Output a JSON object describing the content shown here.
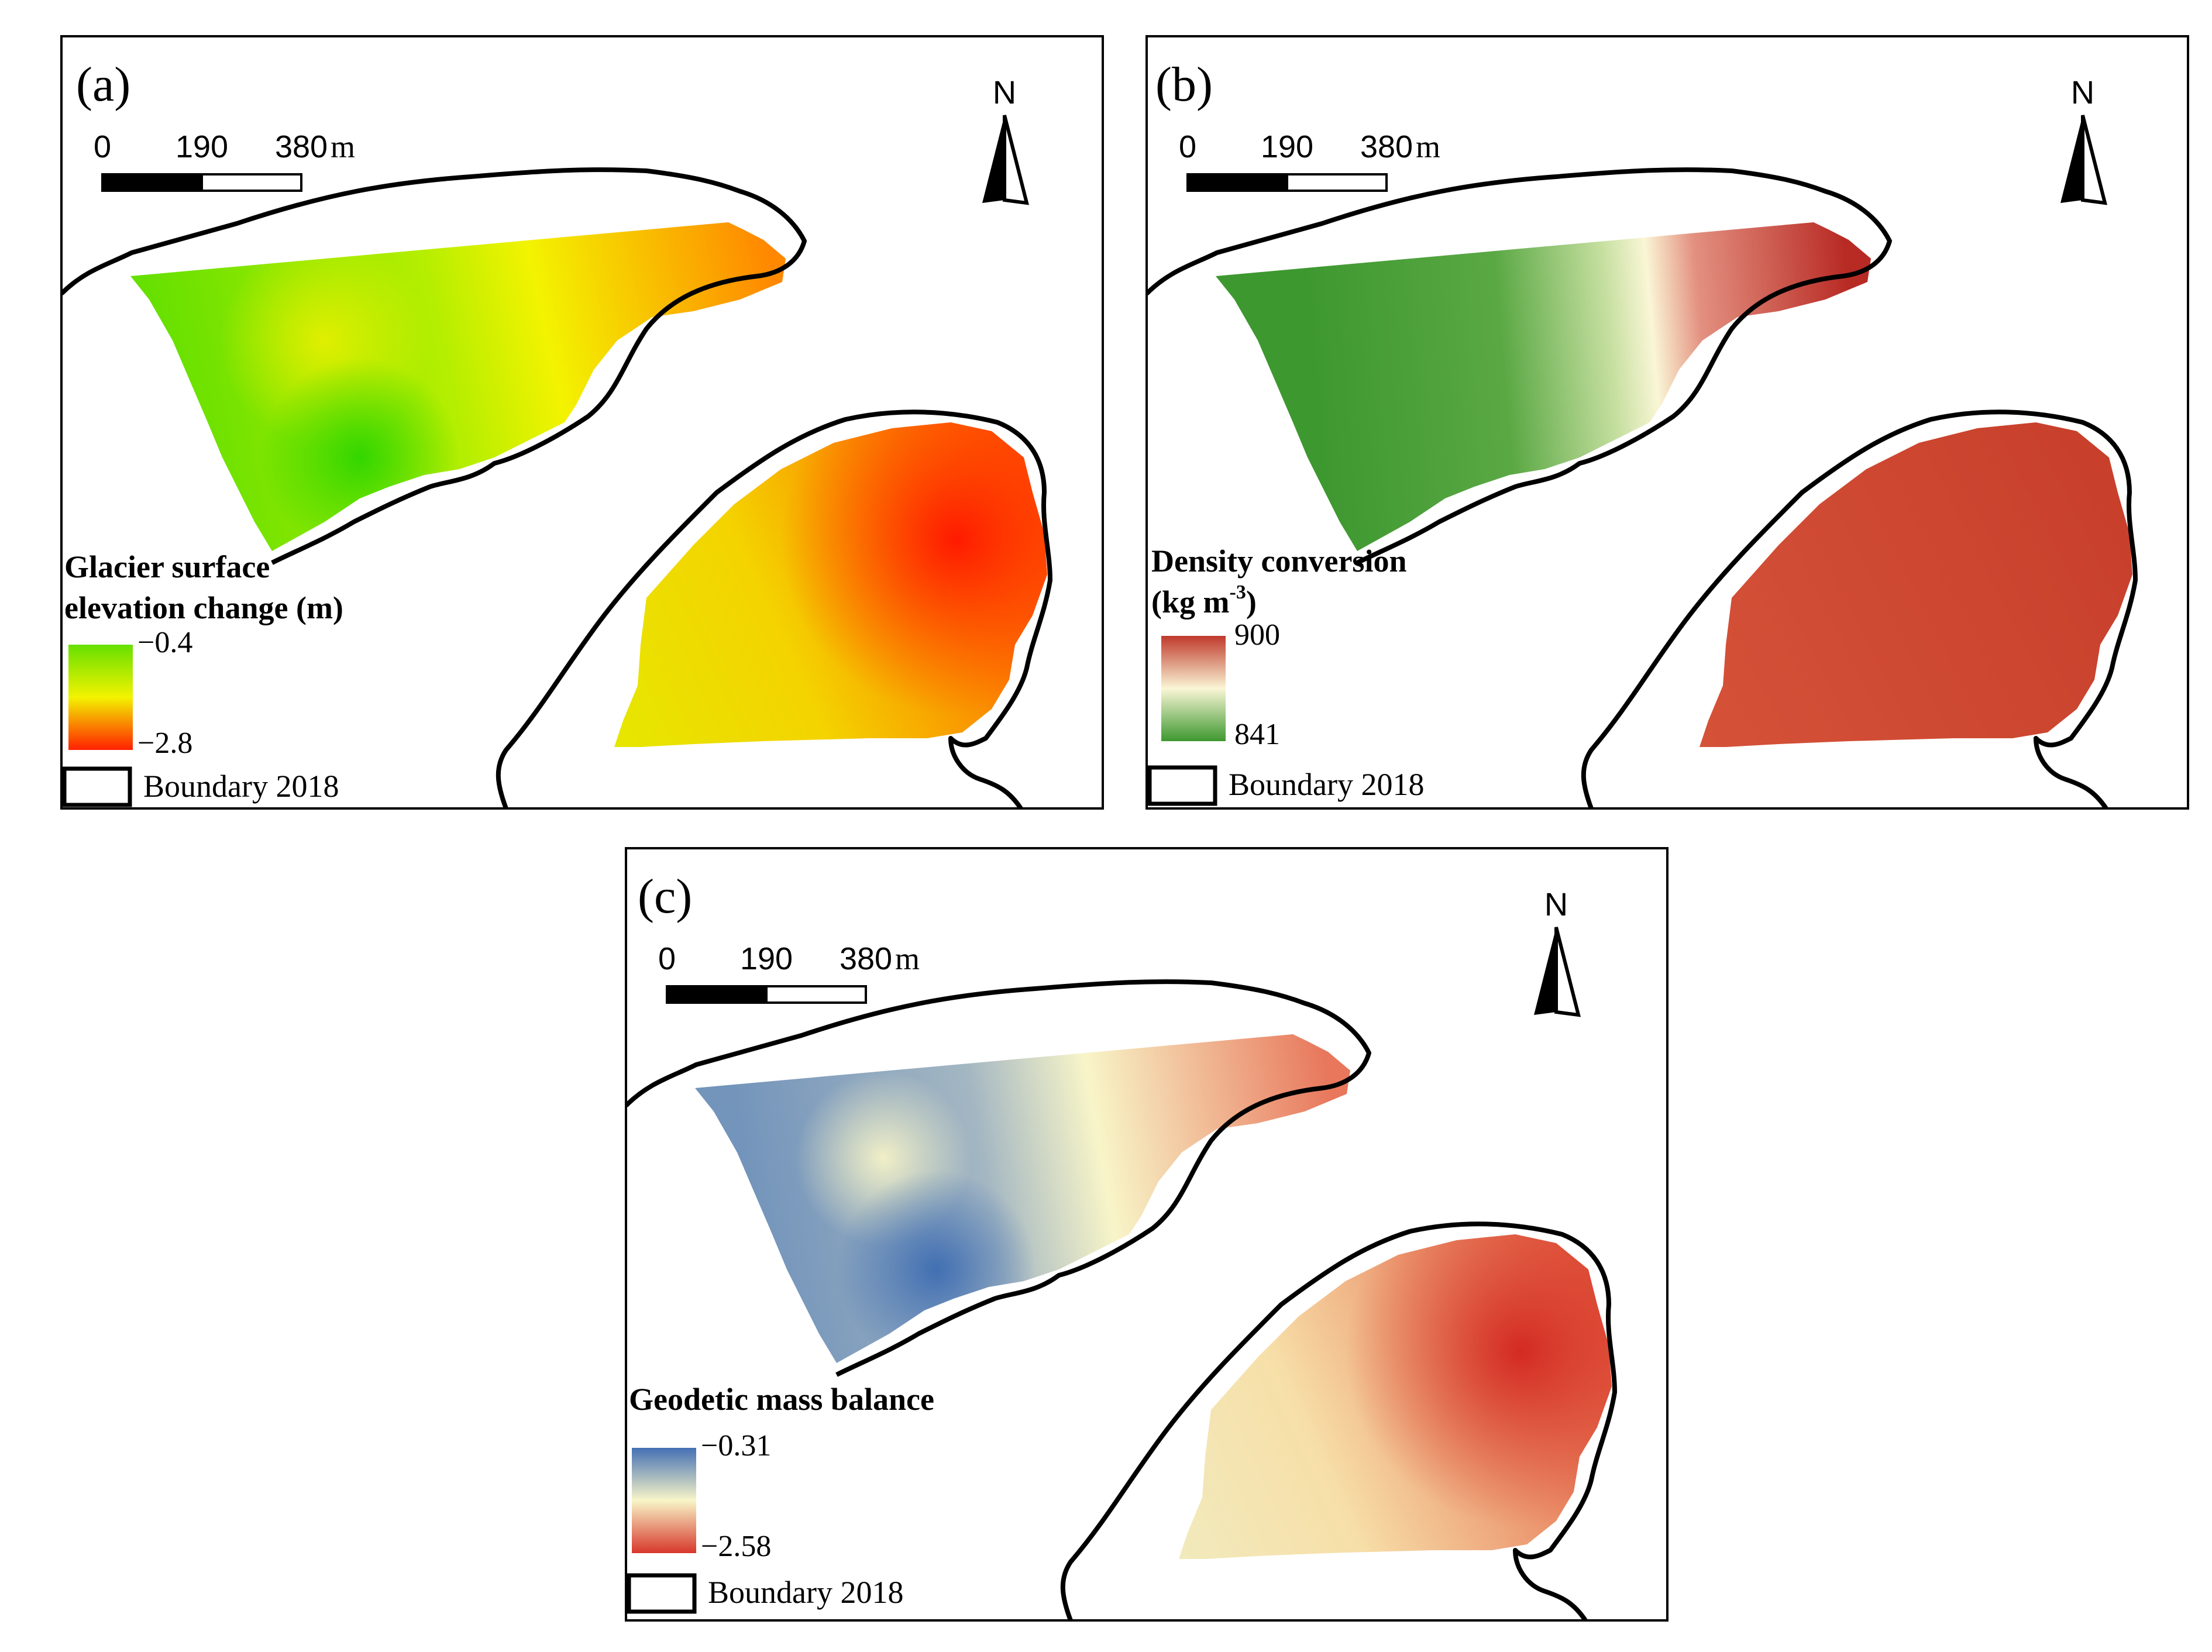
{
  "figure": {
    "panels": [
      {
        "label": "(a)",
        "legend_title_lines": [
          "Glacier surface",
          "elevation change (m)"
        ],
        "legend_superscript": "",
        "legend_close": "",
        "legend_max": "−0.4",
        "legend_min": "−2.8",
        "colors": {
          "low": "#66e000",
          "mid": "#f3f300",
          "high": "#ff2000",
          "bg": "#ffffff"
        }
      },
      {
        "label": "(b)",
        "legend_title_lines": [
          "Density conversion",
          "(kg m"
        ],
        "legend_superscript": "-3",
        "legend_close": ")",
        "legend_max": "900",
        "legend_min": "841",
        "colors": {
          "top": "#c0392b",
          "mid": "#faf6d6",
          "bottom": "#3e9830"
        }
      },
      {
        "label": "(c)",
        "legend_title_lines": [
          "Geodetic mass balance"
        ],
        "legend_superscript": "",
        "legend_close": "",
        "legend_max": "−0.31",
        "legend_min": "−2.58",
        "colors": {
          "top": "#4470b4",
          "mid": "#f8f5c8",
          "bottom": "#d7372b"
        }
      }
    ],
    "scale_bar": {
      "ticks": [
        "0",
        "190",
        "380"
      ],
      "unit": "m"
    },
    "north_arrow_label": "N",
    "boundary_legend": "Boundary 2018"
  }
}
